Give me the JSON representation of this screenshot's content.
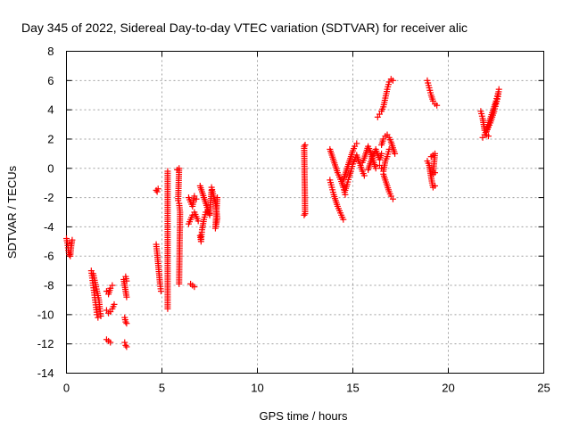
{
  "chart_data": {
    "type": "scatter",
    "title": "Day 345 of 2022, Sidereal Day-to-day VTEC variation (SDTVAR) for receiver alic",
    "xlabel": "GPS time / hours",
    "ylabel": "SDTVAR / TECUs",
    "xlim": [
      0,
      25
    ],
    "ylim": [
      -14,
      8
    ],
    "xticks": [
      "0",
      "5",
      "10",
      "15",
      "20",
      "25"
    ],
    "yticks": [
      "-14",
      "-12",
      "-10",
      "-8",
      "-6",
      "-4",
      "-2",
      "0",
      "2",
      "4",
      "6",
      "8"
    ],
    "grid": true,
    "marker": "plus",
    "color": "#ff0000",
    "series": [
      {
        "segments": [
          [
            [
              0.0,
              -4.8
            ],
            [
              0.05,
              -5.1
            ],
            [
              0.1,
              -5.6
            ],
            [
              0.15,
              -5.9
            ],
            [
              0.2,
              -6.0
            ],
            [
              0.25,
              -5.3
            ],
            [
              0.3,
              -4.9
            ]
          ],
          [
            [
              1.3,
              -7.0
            ],
            [
              1.35,
              -7.5
            ],
            [
              1.4,
              -8.0
            ],
            [
              1.45,
              -8.5
            ],
            [
              1.5,
              -9.0
            ],
            [
              1.55,
              -9.5
            ],
            [
              1.6,
              -10.0
            ],
            [
              1.65,
              -10.2
            ]
          ],
          [
            [
              1.4,
              -7.2
            ],
            [
              1.5,
              -7.8
            ],
            [
              1.6,
              -8.4
            ],
            [
              1.7,
              -9.0
            ],
            [
              1.75,
              -9.6
            ],
            [
              1.8,
              -10.1
            ]
          ],
          [
            [
              2.1,
              -8.4
            ],
            [
              2.2,
              -8.6
            ],
            [
              2.3,
              -8.2
            ],
            [
              2.4,
              -8.0
            ]
          ],
          [
            [
              2.1,
              -9.7
            ],
            [
              2.2,
              -9.9
            ],
            [
              2.3,
              -9.8
            ],
            [
              2.4,
              -9.6
            ],
            [
              2.5,
              -9.3
            ]
          ],
          [
            [
              2.1,
              -11.7
            ],
            [
              2.2,
              -11.8
            ],
            [
              2.3,
              -11.9
            ]
          ],
          [
            [
              3.0,
              -7.6
            ],
            [
              3.05,
              -8.0
            ],
            [
              3.1,
              -8.4
            ],
            [
              3.15,
              -8.8
            ]
          ],
          [
            [
              3.05,
              -10.2
            ],
            [
              3.1,
              -10.5
            ],
            [
              3.15,
              -10.6
            ]
          ],
          [
            [
              3.05,
              -11.9
            ],
            [
              3.1,
              -12.1
            ],
            [
              3.15,
              -12.2
            ]
          ],
          [
            [
              3.1,
              -7.4
            ],
            [
              3.15,
              -7.7
            ]
          ],
          [
            [
              4.7,
              -5.2
            ],
            [
              4.75,
              -5.8
            ],
            [
              4.8,
              -6.5
            ],
            [
              4.85,
              -7.2
            ],
            [
              4.9,
              -7.9
            ],
            [
              4.95,
              -8.4
            ]
          ],
          [
            [
              4.7,
              -1.5
            ],
            [
              4.75,
              -1.6
            ],
            [
              4.8,
              -1.4
            ]
          ],
          [
            [
              5.3,
              -0.2
            ],
            [
              5.3,
              -2.8
            ],
            [
              5.3,
              -4.6
            ],
            [
              5.3,
              -9.6
            ]
          ],
          [
            [
              5.8,
              -0.1
            ],
            [
              5.9,
              0.0
            ],
            [
              5.85,
              -2.2
            ],
            [
              5.9,
              -2.4
            ],
            [
              5.95,
              -3.0
            ],
            [
              5.9,
              -7.9
            ]
          ],
          [
            [
              6.4,
              -2.0
            ],
            [
              6.5,
              -2.3
            ],
            [
              6.6,
              -2.6
            ],
            [
              6.7,
              -1.9
            ],
            [
              6.8,
              -2.1
            ]
          ],
          [
            [
              6.4,
              -3.8
            ],
            [
              6.5,
              -3.5
            ],
            [
              6.6,
              -3.2
            ],
            [
              6.7,
              -3.0
            ],
            [
              6.8,
              -3.3
            ],
            [
              6.9,
              -3.6
            ]
          ],
          [
            [
              6.5,
              -7.9
            ],
            [
              6.6,
              -8.0
            ],
            [
              6.7,
              -8.1
            ]
          ],
          [
            [
              7.0,
              -1.2
            ],
            [
              7.1,
              -1.6
            ],
            [
              7.2,
              -2.0
            ],
            [
              7.3,
              -2.4
            ],
            [
              7.4,
              -2.8
            ],
            [
              7.5,
              -3.2
            ],
            [
              7.6,
              -1.5
            ]
          ],
          [
            [
              7.0,
              -4.6
            ],
            [
              7.05,
              -5.0
            ],
            [
              7.1,
              -4.2
            ],
            [
              7.2,
              -3.5
            ],
            [
              7.3,
              -3.0
            ],
            [
              7.4,
              -2.9
            ],
            [
              7.5,
              -3.1
            ]
          ],
          [
            [
              7.6,
              -1.3
            ],
            [
              7.7,
              -1.9
            ],
            [
              7.8,
              -2.3
            ],
            [
              7.9,
              -3.4
            ],
            [
              7.85,
              -3.8
            ],
            [
              7.8,
              -4.1
            ],
            [
              7.9,
              -2.0
            ]
          ],
          [
            [
              12.5,
              1.6
            ],
            [
              12.45,
              1.5
            ],
            [
              12.5,
              -3.1
            ],
            [
              12.45,
              -3.2
            ]
          ],
          [
            [
              13.8,
              1.3
            ],
            [
              13.9,
              0.9
            ],
            [
              14.0,
              0.5
            ],
            [
              14.1,
              0.1
            ],
            [
              14.2,
              -0.3
            ],
            [
              14.3,
              -0.6
            ],
            [
              14.4,
              -0.9
            ],
            [
              14.5,
              -1.3
            ],
            [
              14.6,
              -1.8
            ]
          ],
          [
            [
              13.8,
              -0.8
            ],
            [
              13.9,
              -1.3
            ],
            [
              14.0,
              -1.8
            ],
            [
              14.1,
              -2.2
            ],
            [
              14.2,
              -2.6
            ],
            [
              14.3,
              -2.9
            ],
            [
              14.4,
              -3.2
            ],
            [
              14.5,
              -3.5
            ]
          ],
          [
            [
              14.5,
              -0.8
            ],
            [
              14.6,
              -0.4
            ],
            [
              14.7,
              0.0
            ],
            [
              14.8,
              0.4
            ],
            [
              14.9,
              0.8
            ],
            [
              15.0,
              1.2
            ],
            [
              15.1,
              1.5
            ],
            [
              15.2,
              1.7
            ]
          ],
          [
            [
              14.6,
              -1.5
            ],
            [
              14.7,
              -1.1
            ],
            [
              14.8,
              -0.6
            ],
            [
              14.9,
              -0.2
            ],
            [
              15.0,
              0.3
            ],
            [
              15.1,
              0.6
            ],
            [
              15.2,
              0.9
            ],
            [
              15.3,
              0.5
            ],
            [
              15.4,
              0.2
            ],
            [
              15.5,
              -0.2
            ],
            [
              15.6,
              -0.5
            ]
          ],
          [
            [
              15.5,
              0.4
            ],
            [
              15.6,
              0.7
            ],
            [
              15.7,
              1.1
            ],
            [
              15.8,
              1.5
            ],
            [
              15.9,
              1.2
            ],
            [
              16.0,
              0.8
            ],
            [
              16.1,
              0.4
            ],
            [
              16.2,
              0.0
            ]
          ],
          [
            [
              15.8,
              -0.1
            ],
            [
              15.9,
              0.3
            ],
            [
              16.0,
              0.7
            ],
            [
              16.1,
              1.0
            ],
            [
              16.2,
              1.3
            ],
            [
              16.3,
              0.9
            ],
            [
              16.4,
              0.6
            ],
            [
              16.5,
              1.0
            ]
          ],
          [
            [
              16.3,
              3.5
            ],
            [
              16.4,
              3.7
            ],
            [
              16.5,
              3.9
            ],
            [
              16.6,
              4.2
            ],
            [
              16.7,
              4.8
            ],
            [
              16.8,
              5.4
            ],
            [
              16.9,
              5.9
            ],
            [
              17.0,
              6.1
            ],
            [
              17.1,
              6.0
            ]
          ],
          [
            [
              16.5,
              1.6
            ],
            [
              16.6,
              2.0
            ],
            [
              16.7,
              2.2
            ],
            [
              16.8,
              2.3
            ],
            [
              16.9,
              2.1
            ],
            [
              17.0,
              1.8
            ],
            [
              17.1,
              1.4
            ],
            [
              17.2,
              1.0
            ]
          ],
          [
            [
              16.6,
              -0.4
            ],
            [
              16.7,
              -0.8
            ],
            [
              16.8,
              -1.2
            ],
            [
              16.9,
              -1.6
            ],
            [
              17.0,
              -1.9
            ],
            [
              17.1,
              -2.1
            ]
          ],
          [
            [
              16.4,
              0.2
            ],
            [
              16.5,
              0.0
            ],
            [
              16.6,
              -0.2
            ],
            [
              16.7,
              0.5
            ],
            [
              16.8,
              0.8
            ],
            [
              16.9,
              1.3
            ]
          ],
          [
            [
              18.9,
              6.0
            ],
            [
              19.0,
              5.5
            ],
            [
              19.1,
              5.0
            ],
            [
              19.2,
              4.6
            ],
            [
              19.3,
              4.4
            ],
            [
              19.4,
              4.3
            ]
          ],
          [
            [
              18.9,
              0.5
            ],
            [
              19.0,
              0.2
            ],
            [
              19.05,
              -0.2
            ],
            [
              19.1,
              -0.6
            ],
            [
              19.15,
              -1.0
            ],
            [
              19.2,
              -1.3
            ],
            [
              19.3,
              -1.2
            ]
          ],
          [
            [
              19.1,
              0.8
            ],
            [
              19.2,
              0.9
            ],
            [
              19.3,
              1.0
            ],
            [
              19.2,
              -0.4
            ],
            [
              19.3,
              -0.3
            ]
          ],
          [
            [
              21.7,
              3.9
            ],
            [
              21.8,
              3.4
            ],
            [
              21.85,
              3.0
            ],
            [
              21.9,
              2.6
            ],
            [
              22.0,
              2.3
            ],
            [
              22.1,
              2.2
            ]
          ],
          [
            [
              21.8,
              2.1
            ],
            [
              21.9,
              2.3
            ],
            [
              22.0,
              2.5
            ],
            [
              22.1,
              2.8
            ],
            [
              22.2,
              3.1
            ],
            [
              22.3,
              3.5
            ],
            [
              22.4,
              3.9
            ],
            [
              22.5,
              4.4
            ],
            [
              22.6,
              4.9
            ],
            [
              22.65,
              5.4
            ]
          ],
          [
            [
              22.0,
              2.6
            ],
            [
              22.1,
              3.0
            ],
            [
              22.2,
              3.4
            ],
            [
              22.3,
              3.8
            ],
            [
              22.4,
              4.2
            ],
            [
              22.5,
              4.6
            ],
            [
              22.6,
              5.1
            ]
          ]
        ]
      }
    ]
  }
}
